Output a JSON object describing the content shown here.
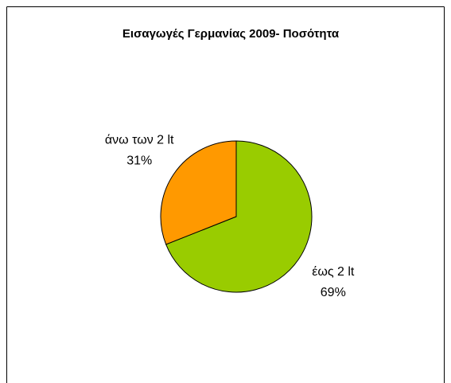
{
  "chart_data": {
    "type": "pie",
    "title": "Εισαγωγές Γερμανίας 2009- Ποσότητα",
    "categories": [
      "έως 2 lt",
      "άνω των 2 lt"
    ],
    "values": [
      69,
      31
    ],
    "value_labels": [
      "69%",
      "31%"
    ],
    "colors": [
      "#99cc00",
      "#ff9900"
    ]
  }
}
